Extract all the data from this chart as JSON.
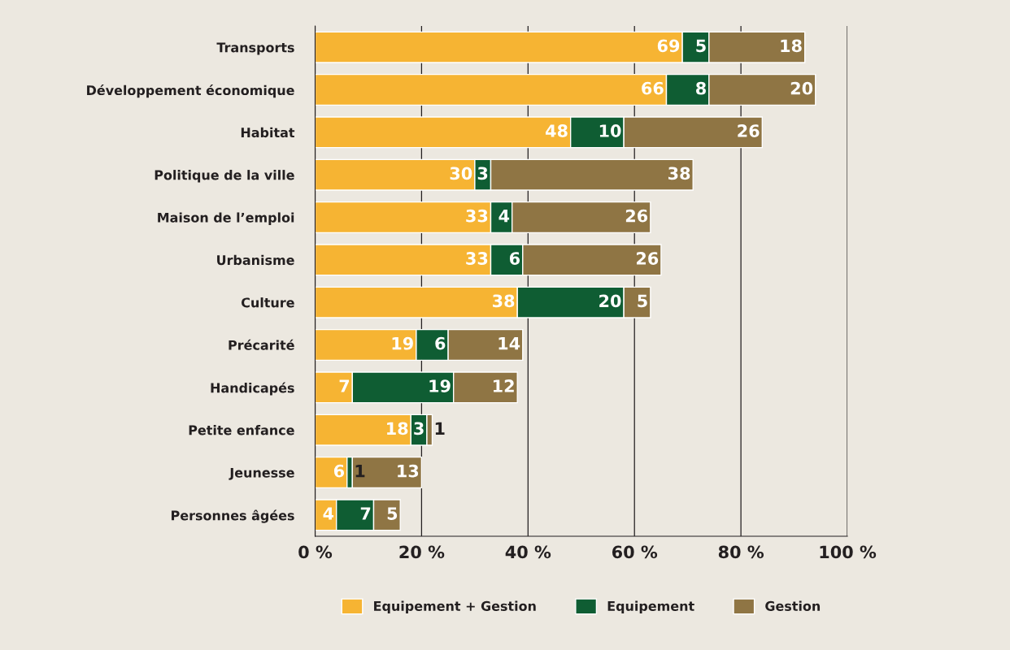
{
  "chart_data": {
    "type": "bar",
    "orientation": "horizontal",
    "stacked": true,
    "categories": [
      "Transports",
      "Développement économique",
      "Habitat",
      "Politique de la ville",
      "Maison de l’emploi",
      "Urbanisme",
      "Culture",
      "Précarité",
      "Handicapés",
      "Petite enfance",
      "Jeunesse",
      "Personnes âgées"
    ],
    "series": [
      {
        "name": "Equipement + Gestion",
        "color": "#f6b433",
        "values": [
          69,
          66,
          48,
          30,
          33,
          33,
          38,
          19,
          7,
          18,
          6,
          4
        ]
      },
      {
        "name": "Equipement",
        "color": "#0f5d33",
        "values": [
          5,
          8,
          10,
          3,
          4,
          6,
          20,
          6,
          19,
          3,
          1,
          7
        ]
      },
      {
        "name": "Gestion",
        "color": "#8f7544",
        "values": [
          18,
          20,
          26,
          38,
          26,
          26,
          5,
          14,
          12,
          1,
          13,
          5
        ]
      }
    ],
    "xlim": [
      0,
      100
    ],
    "xticks": [
      {
        "value": 0,
        "label": "0 %"
      },
      {
        "value": 20,
        "label": "20 %"
      },
      {
        "value": 40,
        "label": "40 %"
      },
      {
        "value": 60,
        "label": "60 %"
      },
      {
        "value": 80,
        "label": "80 %"
      },
      {
        "value": 100,
        "label": "100 %"
      }
    ],
    "grid": "x",
    "legend": "bottom",
    "data_labels": true
  }
}
